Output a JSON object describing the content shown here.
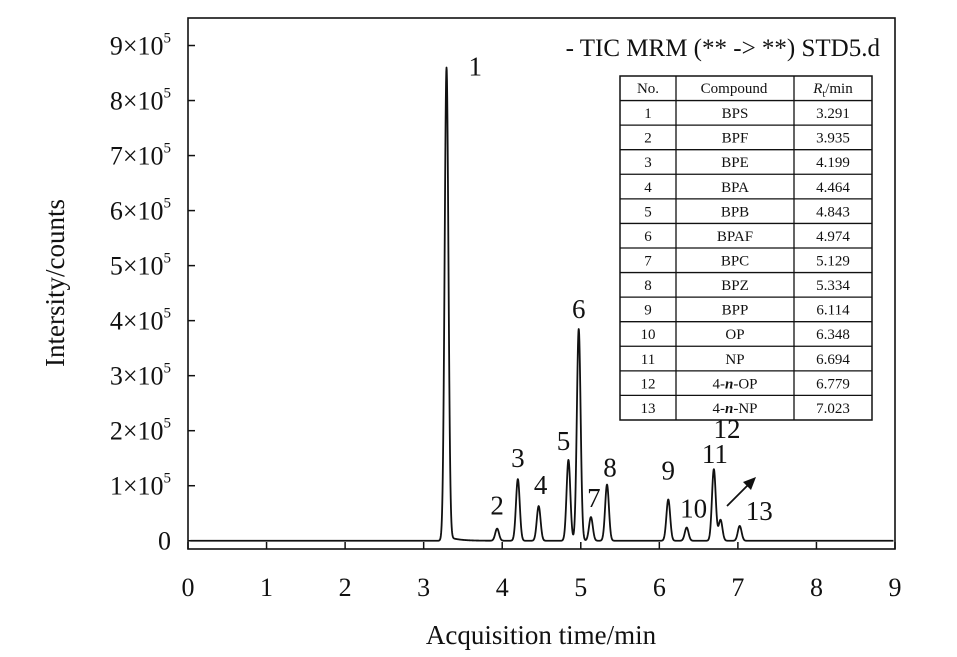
{
  "chart_data": {
    "type": "line",
    "title": "- TIC MRM (** -> **) STD5.d",
    "xlabel": "Acquisition time/min",
    "ylabel": "Intersity/counts",
    "xlim": [
      0,
      9
    ],
    "ylim": [
      -15000,
      950000
    ],
    "x_ticks": [
      "0",
      "1",
      "2",
      "3",
      "4",
      "5",
      "6",
      "7",
      "8",
      "9"
    ],
    "y_tick_values": [
      0,
      100000,
      200000,
      300000,
      400000,
      500000,
      600000,
      700000,
      800000,
      900000
    ],
    "y_ticks": [
      {
        "label": "0",
        "exp": ""
      },
      {
        "label": "1×10",
        "exp": "5"
      },
      {
        "label": "2×10",
        "exp": "5"
      },
      {
        "label": "3×10",
        "exp": "5"
      },
      {
        "label": "4×10",
        "exp": "5"
      },
      {
        "label": "5×10",
        "exp": "5"
      },
      {
        "label": "6×10",
        "exp": "5"
      },
      {
        "label": "7×10",
        "exp": "5"
      },
      {
        "label": "8×10",
        "exp": "5"
      },
      {
        "label": "9×10",
        "exp": "5"
      }
    ],
    "grid": false,
    "line_color": "#111111",
    "peaks": [
      {
        "label": "1",
        "rt": 3.291,
        "height": 860000
      },
      {
        "label": "2",
        "rt": 3.935,
        "height": 22000
      },
      {
        "label": "3",
        "rt": 4.199,
        "height": 112000
      },
      {
        "label": "4",
        "rt": 4.464,
        "height": 63000
      },
      {
        "label": "5",
        "rt": 4.843,
        "height": 147000
      },
      {
        "label": "6",
        "rt": 4.974,
        "height": 385000
      },
      {
        "label": "7",
        "rt": 5.129,
        "height": 43000
      },
      {
        "label": "8",
        "rt": 5.334,
        "height": 102000
      },
      {
        "label": "9",
        "rt": 6.114,
        "height": 75000
      },
      {
        "label": "10",
        "rt": 6.348,
        "height": 24000
      },
      {
        "label": "11",
        "rt": 6.694,
        "height": 130000
      },
      {
        "label": "12",
        "rt": 6.779,
        "height": 38000
      },
      {
        "label": "13",
        "rt": 7.023,
        "height": 27000
      }
    ],
    "table": {
      "headers": [
        "No.",
        "Compound",
        "R",
        "t",
        "/min"
      ],
      "rows": [
        [
          "1",
          "BPS",
          "3.291"
        ],
        [
          "2",
          "BPF",
          "3.935"
        ],
        [
          "3",
          "BPE",
          "4.199"
        ],
        [
          "4",
          "BPA",
          "4.464"
        ],
        [
          "5",
          "BPB",
          "4.843"
        ],
        [
          "6",
          "BPAF",
          "4.974"
        ],
        [
          "7",
          "BPC",
          "5.129"
        ],
        [
          "8",
          "BPZ",
          "5.334"
        ],
        [
          "9",
          "BPP",
          "6.114"
        ],
        [
          "10",
          "OP",
          "6.348"
        ],
        [
          "11",
          "NP",
          "6.694"
        ],
        [
          "12",
          "4-n-OP",
          "6.779"
        ],
        [
          "13",
          "4-n-NP",
          "7.023"
        ]
      ]
    }
  }
}
